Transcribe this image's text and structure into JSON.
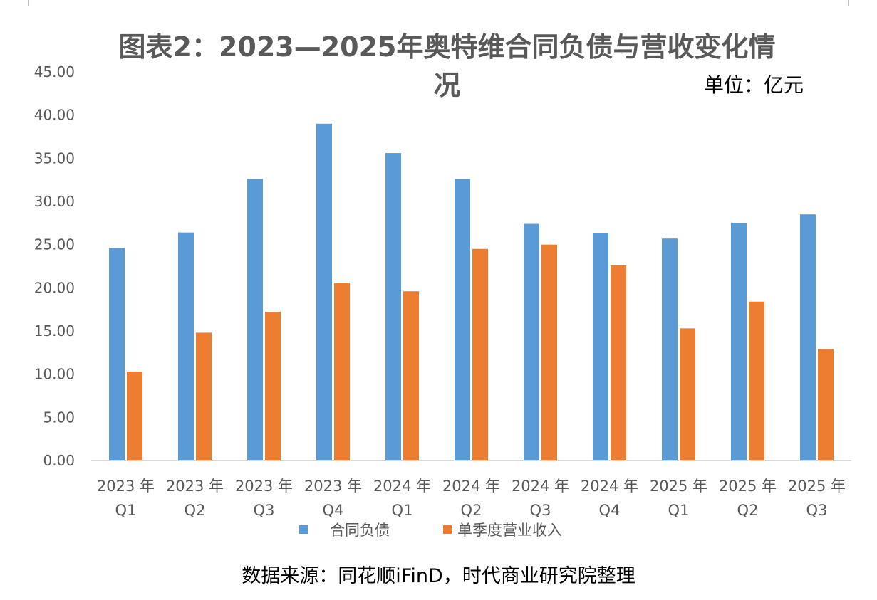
{
  "chart_data": {
    "type": "bar",
    "title_line_1": "图表2：2023—2025年奥特维合同负债与营收变化情",
    "title_line_2": "况",
    "unit_label": "单位：亿元",
    "source_note": "数据来源：同花顺iFinD，时代商业研究院整理",
    "categories": [
      [
        "2023 年",
        "Q1"
      ],
      [
        "2023 年",
        "Q2"
      ],
      [
        "2023 年",
        "Q3"
      ],
      [
        "2023 年",
        "Q4"
      ],
      [
        "2024 年",
        "Q1"
      ],
      [
        "2024 年",
        "Q2"
      ],
      [
        "2024 年",
        "Q3"
      ],
      [
        "2024 年",
        "Q4"
      ],
      [
        "2025 年",
        "Q1"
      ],
      [
        "2025 年",
        "Q2"
      ],
      [
        "2025 年",
        "Q3"
      ]
    ],
    "series": [
      {
        "name": "合同负债",
        "color": "#5B9BD5",
        "values": [
          24.6,
          26.4,
          32.6,
          39.0,
          35.6,
          32.6,
          27.4,
          26.3,
          25.7,
          27.5,
          28.5
        ]
      },
      {
        "name": "单季度营业收入",
        "color": "#ED7D31",
        "values": [
          10.3,
          14.8,
          17.2,
          20.6,
          19.6,
          24.5,
          25.0,
          22.6,
          15.3,
          18.4,
          12.9
        ]
      }
    ],
    "ylim": [
      0,
      45
    ],
    "yticks": [
      "0.00",
      "5.00",
      "10.00",
      "15.00",
      "20.00",
      "25.00",
      "30.00",
      "35.00",
      "40.00",
      "45.00"
    ],
    "grid": false,
    "legend_position": "bottom"
  }
}
